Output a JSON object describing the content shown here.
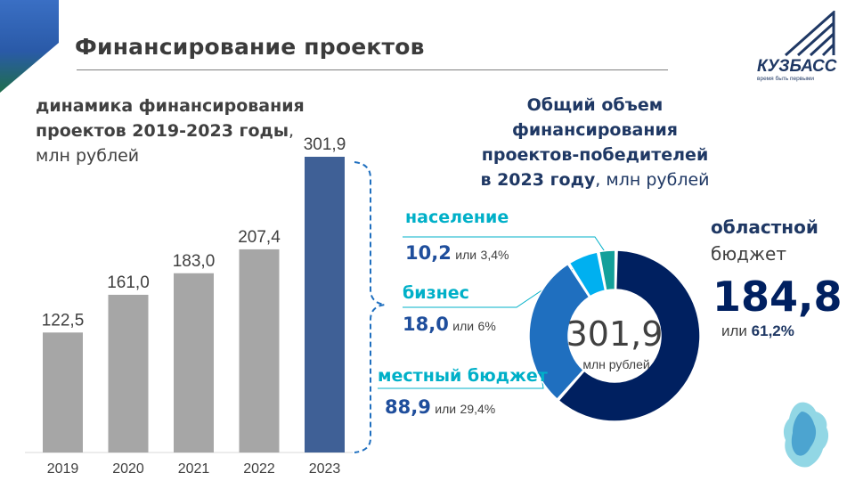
{
  "header": {
    "title": "Финансирование проектов"
  },
  "logo": {
    "name": "КУЗБАСС",
    "tagline": "время быть первыми",
    "emblem_icon": "kuzbass-map-emblem"
  },
  "colors": {
    "bar_grey": "#a6a6a6",
    "bar_highlight": "#3f6096",
    "donut_oblast": "#002060",
    "donut_local": "#1f6fbf",
    "donut_business": "#00b0f0",
    "donut_population": "#13a09a",
    "accent_teal": "#00b0c8"
  },
  "chart_data": [
    {
      "type": "bar",
      "title_parts": [
        "динамика финансирования",
        "проектов 2019-2023 годы",
        ",",
        "млн рублей"
      ],
      "categories": [
        "2019",
        "2020",
        "2021",
        "2022",
        "2023"
      ],
      "values": [
        122.5,
        161.0,
        183.0,
        207.4,
        301.9
      ],
      "value_labels": [
        "122,5",
        "161,0",
        "183,0",
        "207,4",
        "301,9"
      ],
      "ylim": [
        0,
        320
      ],
      "grid": false,
      "highlight_category": "2023"
    },
    {
      "type": "pie",
      "variant": "donut",
      "title_lines": [
        "Общий объем финансирования",
        "проектов-победителей",
        "в 2023 году",
        ", млн рублей"
      ],
      "center_value": "301,9",
      "center_unit": "млн рублей",
      "or_word": "или",
      "segments": [
        {
          "name": "областной бюджет",
          "name_lines": [
            "областной",
            "бюджет"
          ],
          "value": 184.8,
          "value_label": "184,8",
          "share_label": "61,2%"
        },
        {
          "name": "местный бюджет",
          "value": 88.9,
          "value_label": "88,9",
          "share_label": "29,4%"
        },
        {
          "name": "бизнес",
          "value": 18.0,
          "value_label": "18,0",
          "share_label": "6%"
        },
        {
          "name": "население",
          "value": 10.2,
          "value_label": "10,2",
          "share_label": "3,4%"
        }
      ]
    }
  ]
}
